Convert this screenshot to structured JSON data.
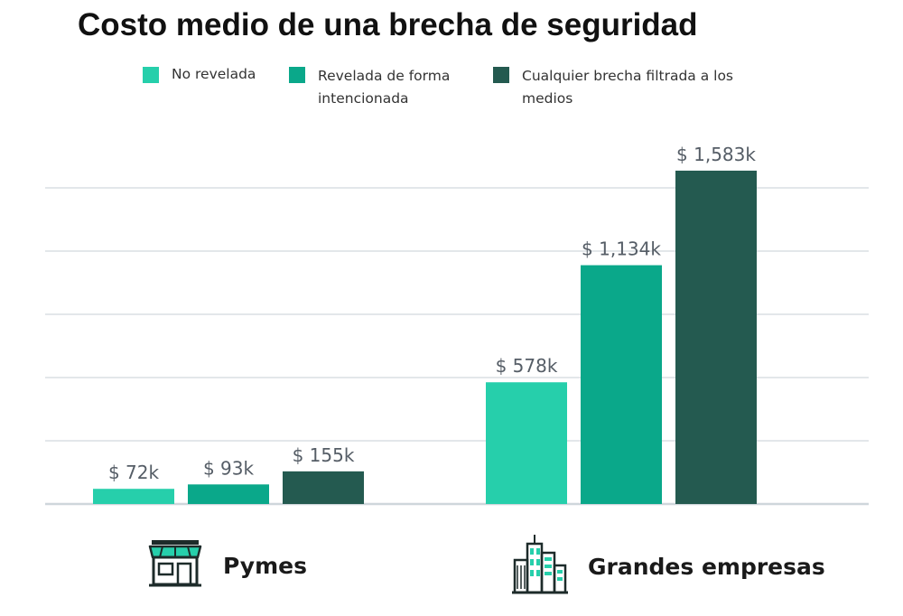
{
  "chart_data": {
    "type": "bar",
    "title": "Costo medio de una brecha de seguridad",
    "categories": [
      "Pymes",
      "Grandes empresas"
    ],
    "series": [
      {
        "name": "No revelada",
        "values": [
          72,
          578
        ],
        "labels": [
          "$ 72k",
          "$ 578k"
        ],
        "color": "#26cfab"
      },
      {
        "name": "Revelada de forma intencionada",
        "values": [
          93,
          1134
        ],
        "labels": [
          "$ 93k",
          "$ 1,134k"
        ],
        "color": "#0aa88a"
      },
      {
        "name": "Cualquier brecha filtrada a los medios",
        "values": [
          155,
          1583
        ],
        "labels": [
          "$ 155k",
          "$ 1,583k"
        ],
        "color": "#245a50"
      }
    ],
    "xlabel": "",
    "ylabel": "",
    "ylim": [
      0,
      1750
    ],
    "grid": true,
    "legend_position": "top"
  },
  "category_icons": [
    "store-icon",
    "office-buildings-icon"
  ],
  "colors": {
    "gridline": "#e3e7ea",
    "baseline": "#cfd6db",
    "icon": "#1d2b2a",
    "icon_accent": "#26cfab"
  }
}
